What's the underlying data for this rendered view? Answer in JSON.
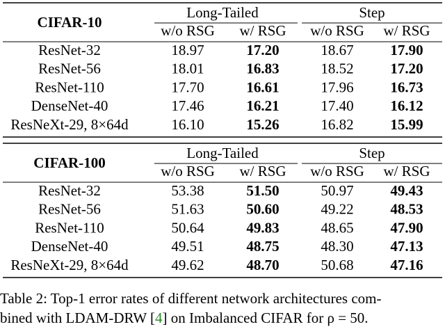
{
  "tables": [
    {
      "dataset": "CIFAR-10",
      "groups": [
        "Long-Tailed",
        "Step"
      ],
      "subheaders": [
        "w/o RSG",
        "w/ RSG",
        "w/o RSG",
        "w/ RSG"
      ],
      "rows": [
        [
          "ResNet-32",
          "18.97",
          "17.20",
          "18.67",
          "17.90"
        ],
        [
          "ResNet-56",
          "18.01",
          "16.83",
          "18.52",
          "17.20"
        ],
        [
          "ResNet-110",
          "17.70",
          "16.61",
          "17.96",
          "16.73"
        ],
        [
          "DenseNet-40",
          "17.46",
          "16.21",
          "17.40",
          "16.12"
        ],
        [
          "ResNeXt-29, 8×64d",
          "16.10",
          "15.26",
          "16.82",
          "15.99"
        ]
      ]
    },
    {
      "dataset": "CIFAR-100",
      "groups": [
        "Long-Tailed",
        "Step"
      ],
      "subheaders": [
        "w/o RSG",
        "w/ RSG",
        "w/o RSG",
        "w/ RSG"
      ],
      "rows": [
        [
          "ResNet-32",
          "53.38",
          "51.50",
          "50.97",
          "49.43"
        ],
        [
          "ResNet-56",
          "51.63",
          "50.60",
          "49.22",
          "48.53"
        ],
        [
          "ResNet-110",
          "50.64",
          "49.83",
          "48.65",
          "47.90"
        ],
        [
          "DenseNet-40",
          "49.51",
          "48.75",
          "48.30",
          "47.13"
        ],
        [
          "ResNeXt-29, 8×64d",
          "49.62",
          "48.70",
          "50.68",
          "47.16"
        ]
      ]
    }
  ],
  "caption": {
    "line1": "Table 2: Top-1 error rates of different network architectures com-",
    "line2": [
      "bined with LDAM-DRW [",
      "4",
      "] on Imbalanced CIFAR for ρ = 50."
    ]
  }
}
